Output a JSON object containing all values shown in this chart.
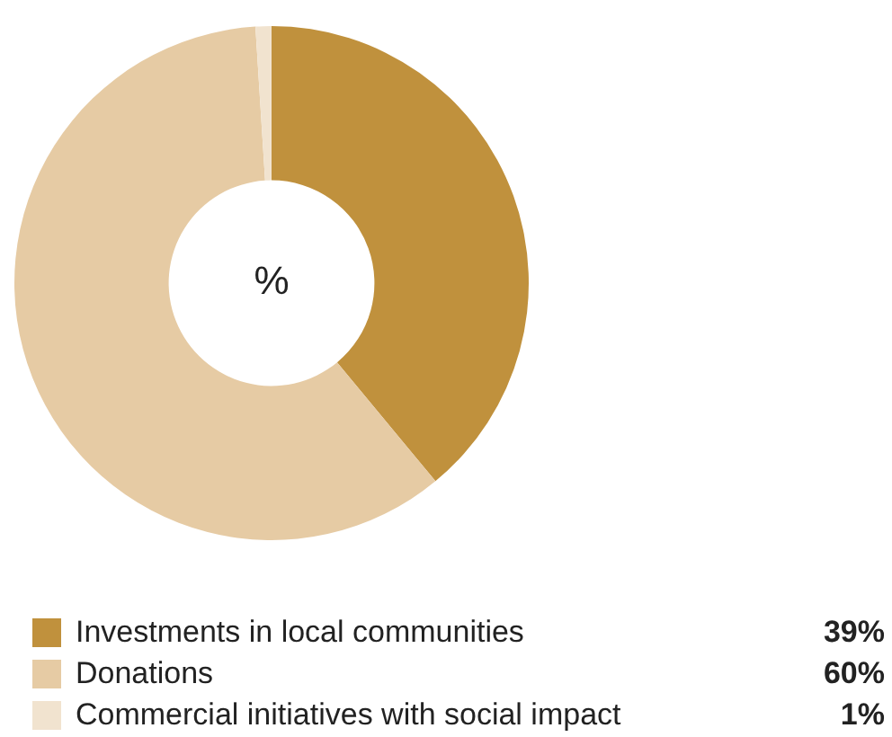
{
  "chart_data": {
    "type": "donut",
    "categories": [
      "Investments in local communities",
      "Donations",
      "Commercial initiatives with social impact"
    ],
    "values": [
      39,
      60,
      1
    ],
    "colors": [
      "#c0913d",
      "#e6cba4",
      "#f1e3cf"
    ],
    "value_labels": [
      "39%",
      "60%",
      "1%"
    ],
    "legend": "bottom",
    "annotations": [
      "%"
    ]
  }
}
